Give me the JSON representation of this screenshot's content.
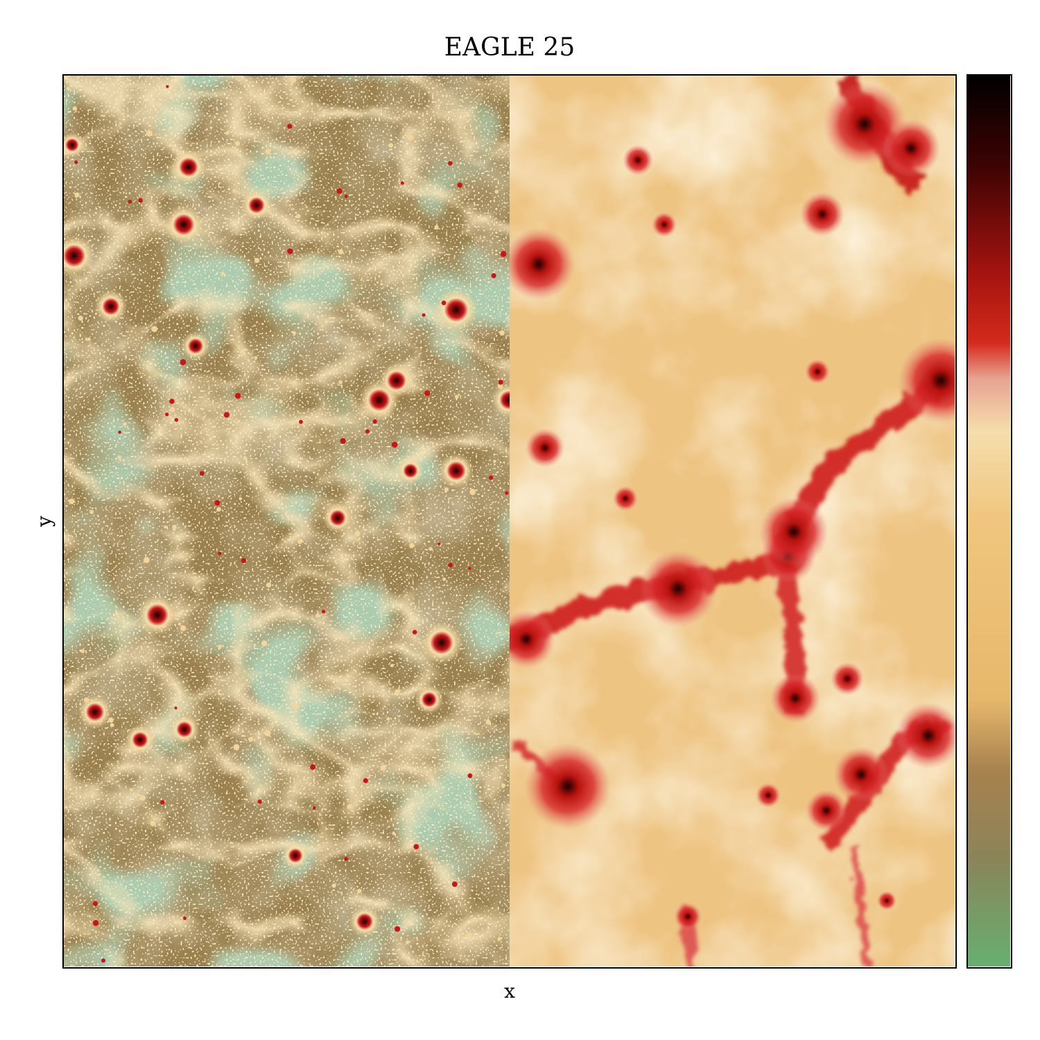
{
  "figure": {
    "title": "EAGLE 25",
    "xlabel": "x",
    "ylabel": "y"
  },
  "panels": {
    "left": {
      "description_colors": [
        "#8f7a4e",
        "#6f9a6e",
        "#e8c07d",
        "#c81f1f"
      ]
    },
    "right": {
      "description_colors": [
        "#eec482",
        "#f7ddae",
        "#d11e1e",
        "#2b0000"
      ]
    }
  },
  "colorbar": {
    "stops": [
      {
        "offset": 0.0,
        "color": "#66b071"
      },
      {
        "offset": 0.12,
        "color": "#8a8459"
      },
      {
        "offset": 0.22,
        "color": "#a7824f"
      },
      {
        "offset": 0.3,
        "color": "#e6b86c"
      },
      {
        "offset": 0.5,
        "color": "#f0c57d"
      },
      {
        "offset": 0.6,
        "color": "#f5deac"
      },
      {
        "offset": 0.66,
        "color": "#e8a392"
      },
      {
        "offset": 0.7,
        "color": "#d42a1c"
      },
      {
        "offset": 0.78,
        "color": "#a3130f"
      },
      {
        "offset": 0.9,
        "color": "#3d0303"
      },
      {
        "offset": 1.0,
        "color": "#000000"
      }
    ]
  }
}
